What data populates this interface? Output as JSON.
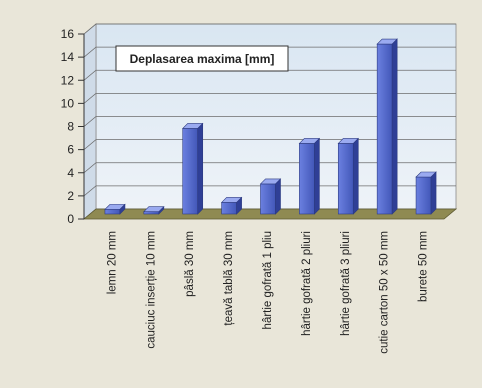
{
  "chart_data": {
    "type": "bar",
    "title": "Deplasarea maxima [mm]",
    "categories": [
      "lemn 20 mm",
      "cauciuc inserție 10 mm",
      "pâslă 30 mm",
      "țeavă tablă 30 mm",
      "hârtie gofrată 1 pliu",
      "hârtie gofrată 2 pliuri",
      "hârtie gofrată 3 pliuri",
      "cutie carton 50 x 50 mm",
      "burete 50 mm"
    ],
    "values": [
      0.4,
      0.2,
      7.4,
      1.0,
      2.6,
      6.1,
      6.1,
      14.7,
      3.2
    ],
    "ylim": [
      0,
      16
    ],
    "yticks": [
      0,
      2,
      4,
      6,
      8,
      10,
      12,
      14,
      16
    ],
    "grid": true,
    "legend": "none",
    "bar_color": "#5a6fd0",
    "floor_color": "#8f8a52"
  }
}
